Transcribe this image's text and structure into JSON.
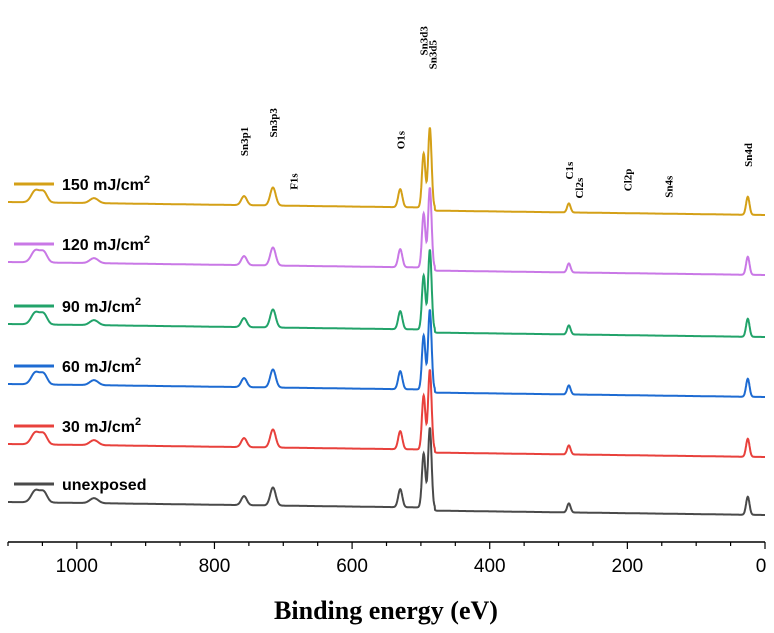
{
  "chart_data": {
    "type": "line",
    "xlabel": "Binding energy (eV)",
    "ylabel": "",
    "title": "",
    "xlim": [
      1100,
      0
    ],
    "x_reversed": true,
    "xticks": [
      1000,
      800,
      600,
      400,
      200,
      0
    ],
    "xtick_labels": [
      "1000",
      "800",
      "600",
      "400",
      "200",
      "0"
    ],
    "grid": false,
    "legend_placement": "left, next to each trace",
    "baseline_ratio": 0.05,
    "peaks": [
      {
        "ev": 1060,
        "h": 0.06,
        "w": 6
      },
      {
        "ev": 1048,
        "h": 0.05,
        "w": 5
      },
      {
        "ev": 975,
        "h": 0.025,
        "w": 6
      },
      {
        "ev": 757,
        "h": 0.045,
        "w": 4
      },
      {
        "ev": 715,
        "h": 0.09,
        "w": 4
      },
      {
        "ev": 530,
        "h": 0.09,
        "w": 3
      },
      {
        "ev": 496,
        "h": 0.27,
        "w": 2.5
      },
      {
        "ev": 487,
        "h": 0.4,
        "w": 2.5
      },
      {
        "ev": 285,
        "h": 0.045,
        "w": 2.5
      },
      {
        "ev": 25,
        "h": 0.09,
        "w": 2.5
      }
    ],
    "series": [
      {
        "name": "unexposed",
        "name_sup": "",
        "color": "#4a4a4a",
        "offset": 0.0
      },
      {
        "name": "30 mJ/cm",
        "name_sup": "2",
        "color": "#e8413c",
        "offset": 0.29
      },
      {
        "name": "60 mJ/cm",
        "name_sup": "2",
        "color": "#1e6bd2",
        "offset": 0.59
      },
      {
        "name": "90 mJ/cm",
        "name_sup": "2",
        "color": "#22a36a",
        "offset": 0.89
      },
      {
        "name": "120 mJ/cm",
        "name_sup": "2",
        "color": "#c978e6",
        "offset": 1.2
      },
      {
        "name": "150 mJ/cm",
        "name_sup": "2",
        "color": "#d4a017",
        "offset": 1.5
      }
    ],
    "peak_labels": [
      {
        "text": "Sn3p1",
        "ev": 757,
        "above": 0.2
      },
      {
        "text": "Sn3p3",
        "ev": 715,
        "above": 0.25
      },
      {
        "text": "F1s",
        "ev": 685,
        "above": 0.08
      },
      {
        "text": "O1s",
        "ev": 530,
        "above": 0.2
      },
      {
        "text": "Sn3d3",
        "ev": 496,
        "above": 0.49
      },
      {
        "text": "Sn3d5",
        "ev": 483,
        "above": 0.58
      },
      {
        "text": "C1s",
        "ev": 285,
        "above": 0.12
      },
      {
        "text": "Cl2s",
        "ev": 270,
        "above": 0.07
      },
      {
        "text": "Cl2p",
        "ev": 200,
        "above": 0.11
      },
      {
        "text": "Sn4s",
        "ev": 140,
        "above": 0.08
      },
      {
        "text": "Sn4d",
        "ev": 25,
        "above": 0.15
      }
    ]
  }
}
